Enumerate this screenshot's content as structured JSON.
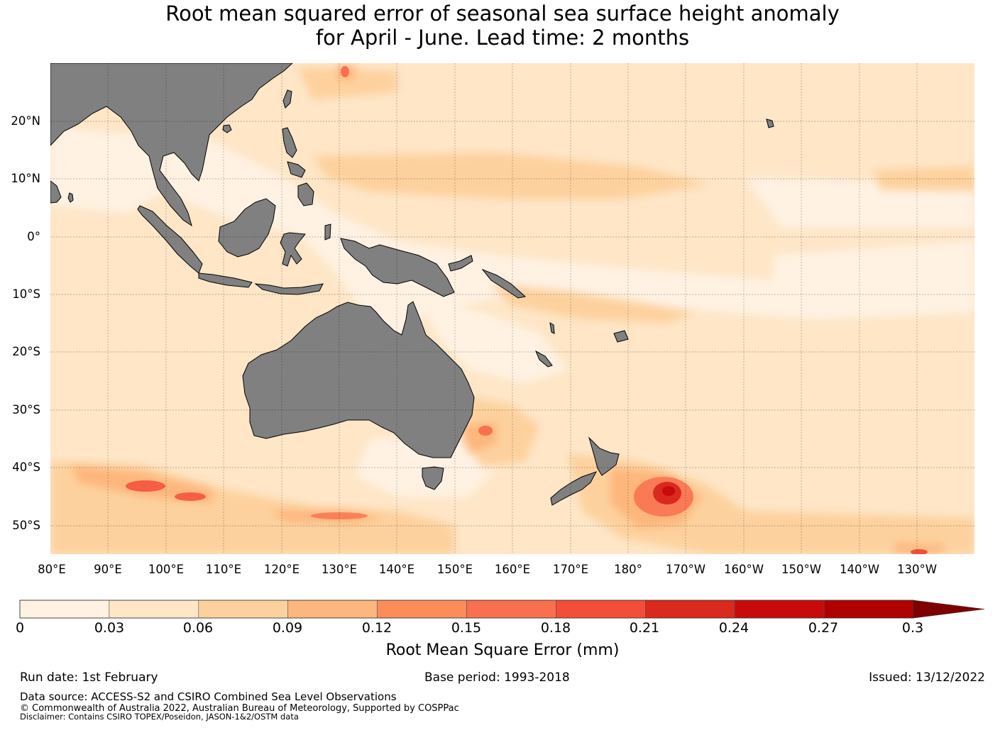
{
  "title": {
    "line1": "Root mean squared error of seasonal sea surface height anomaly",
    "line2": "for April - June. Lead time: 2 months"
  },
  "map": {
    "projection": "equirectangular",
    "lon_range": [
      80,
      240
    ],
    "lat_range": [
      -55,
      30
    ],
    "land_color": "#808080",
    "latitude_labels": [
      "20°N",
      "10°N",
      "0°",
      "10°S",
      "20°S",
      "30°S",
      "40°S",
      "50°S"
    ],
    "latitude_values": [
      20,
      10,
      0,
      -10,
      -20,
      -30,
      -40,
      -50
    ],
    "longitude_labels": [
      "80°E",
      "90°E",
      "100°E",
      "110°E",
      "120°E",
      "130°E",
      "140°E",
      "150°E",
      "160°E",
      "170°E",
      "180°",
      "170°W",
      "160°W",
      "150°W",
      "140°W",
      "130°W"
    ],
    "longitude_values": [
      80,
      90,
      100,
      110,
      120,
      130,
      140,
      150,
      160,
      170,
      180,
      190,
      200,
      210,
      220,
      230
    ]
  },
  "colorbar": {
    "label": "Root Mean Square Error (mm)",
    "tick_labels": [
      "0",
      "0.03",
      "0.06",
      "0.09",
      "0.12",
      "0.15",
      "0.18",
      "0.21",
      "0.24",
      "0.27",
      "0.3"
    ],
    "bins": [
      0,
      0.03,
      0.06,
      0.09,
      0.12,
      0.15,
      0.18,
      0.21,
      0.24,
      0.27,
      0.3
    ],
    "colors": [
      "#fff2e3",
      "#fee6c7",
      "#fdd19d",
      "#fdb67c",
      "#fc8d59",
      "#f9704f",
      "#f44d38",
      "#d92a1d",
      "#c90a0a",
      "#b00000",
      "#7f0000"
    ],
    "extend": "max"
  },
  "footer": {
    "run_date": "Run date: 1st February",
    "base_period": "Base period: 1993-2018",
    "issued": "Issued: 13/12/2022",
    "data_source": "Data source: ACCESS-S2 and CSIRO Combined Sea Level Observations",
    "copyright": "© Commonwealth of Australia 2022, Australian Bureau of Meteorology, Supported by COSPPac",
    "disclaimer": "Disclaimer: Contains CSIRO TOPEX/Poseidon, JASON-1&2/OSTM data"
  }
}
